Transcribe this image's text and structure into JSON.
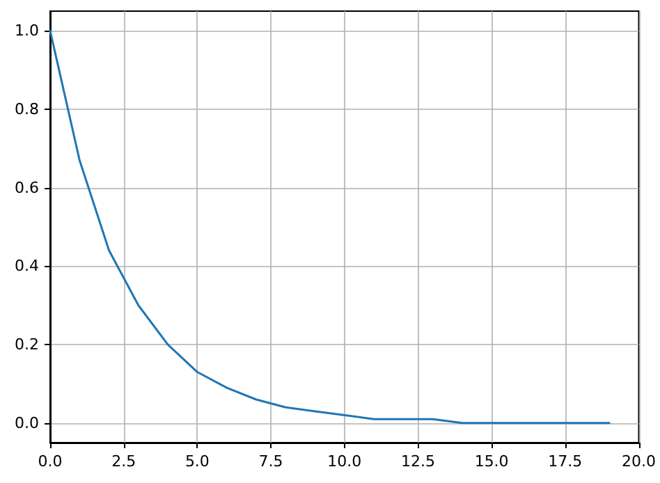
{
  "chart_data": {
    "type": "line",
    "x": [
      0,
      1,
      2,
      3,
      4,
      5,
      6,
      7,
      8,
      9,
      10,
      11,
      12,
      13,
      14,
      15,
      16,
      17,
      18,
      19
    ],
    "series": [
      {
        "color": "#1f77b4",
        "values": [
          1,
          0.67,
          0.44,
          0.3,
          0.2,
          0.13,
          0.09,
          0.06,
          0.04,
          0.03,
          0.02,
          0.01,
          0.01,
          0.01,
          0,
          0,
          0,
          0,
          0,
          0
        ]
      }
    ],
    "xlim": [
      0,
      20
    ],
    "xticks": [
      {
        "value": 0,
        "label": "0.0"
      },
      {
        "value": 2.5,
        "label": "2.5"
      },
      {
        "value": 5,
        "label": "5.0"
      },
      {
        "value": 7.5,
        "label": "7.5"
      },
      {
        "value": 10,
        "label": "10.0"
      },
      {
        "value": 12.5,
        "label": "12.5"
      },
      {
        "value": 15,
        "label": "15.0"
      },
      {
        "value": 17.5,
        "label": "17.5"
      },
      {
        "value": 20,
        "label": "20.0"
      }
    ],
    "ylim": [
      -0.05,
      1.05
    ],
    "yticks": [
      {
        "value": 0,
        "label": "0.0"
      },
      {
        "value": 0.2,
        "label": "0.2"
      },
      {
        "value": 0.4,
        "label": "0.4"
      },
      {
        "value": 0.6,
        "label": "0.6"
      },
      {
        "value": 0.8,
        "label": "0.8"
      },
      {
        "value": 1,
        "label": "1.0"
      }
    ],
    "grid": true,
    "marker": "none",
    "line_style": "solid"
  }
}
